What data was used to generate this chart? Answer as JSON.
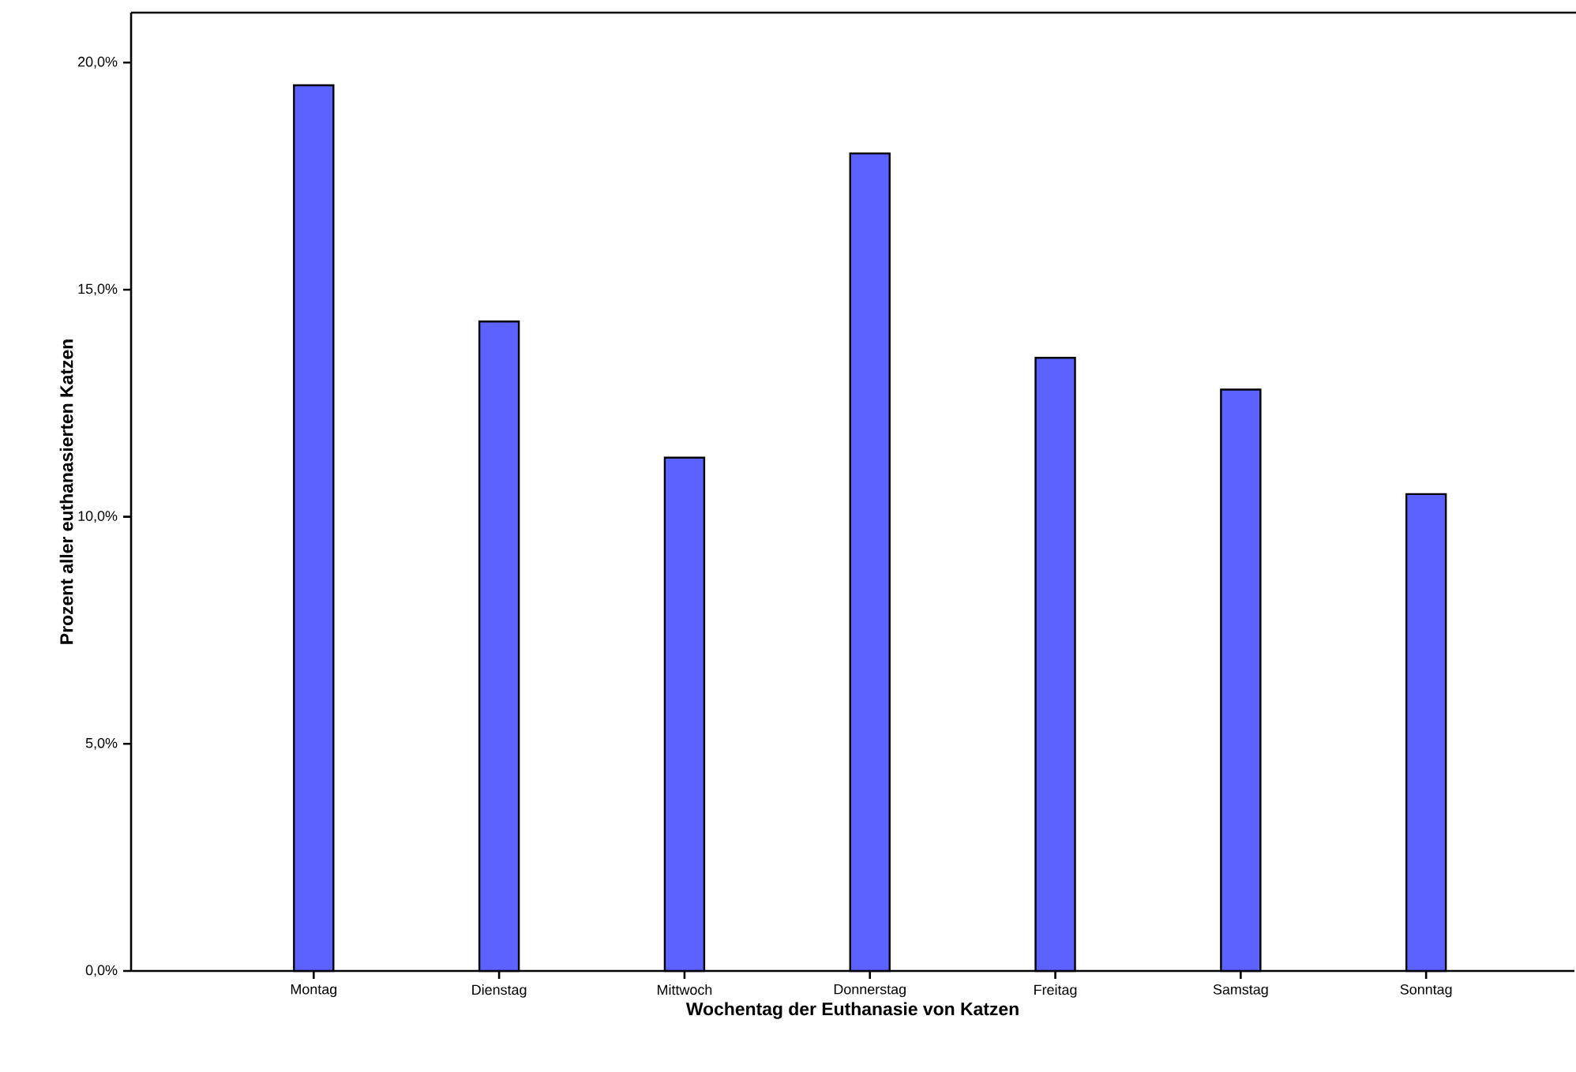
{
  "chart_data": {
    "type": "bar",
    "xlabel": "Wochentag der Euthanasie von Katzen",
    "ylabel": "Prozent aller euthanasierten Katzen",
    "categories": [
      "Montag",
      "Dienstag",
      "Mittwoch",
      "Donnerstag",
      "Freitag",
      "Samstag",
      "Sonntag"
    ],
    "values": [
      19.5,
      14.3,
      11.3,
      18.0,
      13.5,
      12.8,
      10.5
    ],
    "color": "#5c62ff",
    "ylim": [
      0,
      21.1
    ],
    "yticks": [
      {
        "value": 0,
        "label": "0,0%"
      },
      {
        "value": 5,
        "label": "5,0%"
      },
      {
        "value": 10,
        "label": "10,0%"
      },
      {
        "value": 15,
        "label": "15,0%"
      },
      {
        "value": 20,
        "label": "20,0%"
      }
    ],
    "grid": false
  }
}
